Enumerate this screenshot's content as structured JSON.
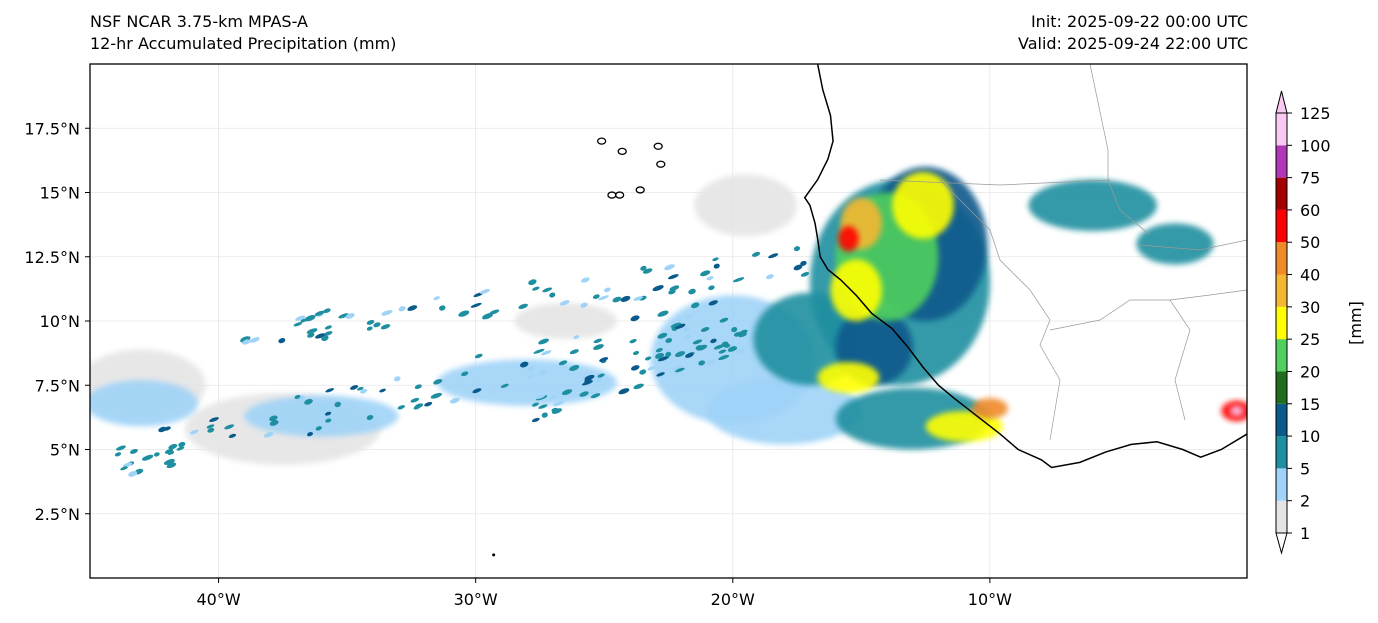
{
  "header": {
    "model": "NSF NCAR 3.75-km MPAS-A",
    "field": "12-hr Accumulated Precipitation (mm)",
    "init": "Init: 2025-09-22 00:00 UTC",
    "valid": "Valid: 2025-09-24 22:00 UTC"
  },
  "map": {
    "lon_range": [
      -45,
      0
    ],
    "lat_range": [
      0,
      20
    ],
    "lon_ticks": [
      -40,
      -30,
      -20,
      -10
    ],
    "lon_tick_labels": [
      "40°W",
      "30°W",
      "20°W",
      "10°W"
    ],
    "lat_ticks": [
      2.5,
      5,
      7.5,
      10,
      12.5,
      15,
      17.5
    ],
    "lat_tick_labels": [
      "2.5°N",
      "5°N",
      "7.5°N",
      "10°N",
      "12.5°N",
      "15°N",
      "17.5°N"
    ],
    "grid": true,
    "coastline": [
      [
        -16.7,
        20.0
      ],
      [
        -16.5,
        19.0
      ],
      [
        -16.2,
        18.0
      ],
      [
        -16.1,
        17.0
      ],
      [
        -16.3,
        16.3
      ],
      [
        -16.7,
        15.5
      ],
      [
        -17.2,
        14.8
      ],
      [
        -17.0,
        14.5
      ],
      [
        -16.8,
        13.8
      ],
      [
        -16.7,
        13.2
      ],
      [
        -16.6,
        12.5
      ],
      [
        -16.3,
        12.0
      ],
      [
        -15.8,
        11.6
      ],
      [
        -15.2,
        11.0
      ],
      [
        -14.6,
        10.3
      ],
      [
        -13.8,
        9.7
      ],
      [
        -13.2,
        9.0
      ],
      [
        -12.6,
        8.2
      ],
      [
        -12.0,
        7.5
      ],
      [
        -11.4,
        7.0
      ],
      [
        -10.5,
        6.3
      ],
      [
        -9.6,
        5.6
      ],
      [
        -8.9,
        5.0
      ],
      [
        -8.0,
        4.6
      ],
      [
        -7.6,
        4.3
      ],
      [
        -6.5,
        4.5
      ],
      [
        -5.5,
        4.9
      ],
      [
        -4.5,
        5.2
      ],
      [
        -3.5,
        5.3
      ],
      [
        -2.5,
        5.0
      ],
      [
        -1.8,
        4.7
      ],
      [
        -1.0,
        5.0
      ],
      [
        0.0,
        5.6
      ]
    ],
    "islands": [
      {
        "name": "Santo Antao",
        "lon": -25.1,
        "lat": 17.0
      },
      {
        "name": "Sao Nicolau",
        "lon": -24.3,
        "lat": 16.6
      },
      {
        "name": "Sal",
        "lon": -22.9,
        "lat": 16.8
      },
      {
        "name": "Boa Vista",
        "lon": -22.8,
        "lat": 16.1
      },
      {
        "name": "Fogo",
        "lon": -24.4,
        "lat": 14.9
      },
      {
        "name": "Santiago",
        "lon": -23.6,
        "lat": 15.1
      },
      {
        "name": "Brava",
        "lon": -24.7,
        "lat": 14.9
      }
    ]
  },
  "colorbar": {
    "unit_label": "[mm]",
    "extend": "both",
    "levels": [
      "1",
      "2",
      "5",
      "10",
      "15",
      "20",
      "25",
      "30",
      "40",
      "50",
      "60",
      "75",
      "100",
      "125"
    ],
    "colors": [
      "#e4e4e4",
      "#9fd3f7",
      "#1e8fa0",
      "#0a5a8c",
      "#1f6e1f",
      "#4fcf5c",
      "#ffff00",
      "#f5b731",
      "#ef8a28",
      "#ff0000",
      "#a30000",
      "#b037b7",
      "#f8c9f3"
    ],
    "under_color": "#ffffff",
    "over_color": "#f8c9f3"
  },
  "precip_regions": [
    {
      "lon": -43.0,
      "lat": 7.5,
      "rx": 2.5,
      "ry": 1.4,
      "level": 0
    },
    {
      "lon": -37.5,
      "lat": 5.8,
      "rx": 3.8,
      "ry": 1.4,
      "level": 0
    },
    {
      "lon": -26.5,
      "lat": 10.0,
      "rx": 2.0,
      "ry": 0.7,
      "level": 0
    },
    {
      "lon": -19.5,
      "lat": 14.5,
      "rx": 2.0,
      "ry": 1.2,
      "level": 0
    },
    {
      "lon": -43.0,
      "lat": 6.8,
      "rx": 2.2,
      "ry": 0.9,
      "level": 1
    },
    {
      "lon": -36.0,
      "lat": 6.3,
      "rx": 3.0,
      "ry": 0.8,
      "level": 1
    },
    {
      "lon": -28.0,
      "lat": 7.6,
      "rx": 3.5,
      "ry": 0.9,
      "level": 1
    },
    {
      "lon": -20.0,
      "lat": 8.5,
      "rx": 3.2,
      "ry": 2.5,
      "level": 1
    },
    {
      "lon": -18.0,
      "lat": 6.5,
      "rx": 3.0,
      "ry": 1.3,
      "level": 1
    },
    {
      "lon": -17.0,
      "lat": 9.3,
      "rx": 2.2,
      "ry": 1.8,
      "level": 2
    },
    {
      "lon": -13.5,
      "lat": 11.5,
      "rx": 3.5,
      "ry": 4.0,
      "level": 2
    },
    {
      "lon": -13.0,
      "lat": 6.2,
      "rx": 3.0,
      "ry": 1.2,
      "level": 2
    },
    {
      "lon": -6.0,
      "lat": 14.5,
      "rx": 2.5,
      "ry": 1.0,
      "level": 2
    },
    {
      "lon": -2.8,
      "lat": 13.0,
      "rx": 1.5,
      "ry": 0.8,
      "level": 2
    },
    {
      "lon": -12.5,
      "lat": 13.0,
      "rx": 2.4,
      "ry": 3.0,
      "level": 3
    },
    {
      "lon": -14.5,
      "lat": 9.0,
      "rx": 1.5,
      "ry": 1.5,
      "level": 3
    },
    {
      "lon": -14.0,
      "lat": 12.5,
      "rx": 2.0,
      "ry": 2.5,
      "level": 5
    },
    {
      "lon": -12.6,
      "lat": 14.5,
      "rx": 1.2,
      "ry": 1.3,
      "level": 6
    },
    {
      "lon": -15.2,
      "lat": 11.2,
      "rx": 1.0,
      "ry": 1.2,
      "level": 6
    },
    {
      "lon": -15.0,
      "lat": 13.8,
      "rx": 0.8,
      "ry": 1.0,
      "level": 7
    },
    {
      "lon": -15.5,
      "lat": 7.8,
      "rx": 1.2,
      "ry": 0.6,
      "level": 6
    },
    {
      "lon": -11.0,
      "lat": 5.9,
      "rx": 1.5,
      "ry": 0.6,
      "level": 6
    },
    {
      "lon": -10.0,
      "lat": 6.6,
      "rx": 0.7,
      "ry": 0.4,
      "level": 8
    },
    {
      "lon": -15.5,
      "lat": 13.2,
      "rx": 0.4,
      "ry": 0.5,
      "level": 9
    },
    {
      "lon": -0.4,
      "lat": 6.5,
      "rx": 0.6,
      "ry": 0.4,
      "level": 9
    },
    {
      "lon": -0.4,
      "lat": 6.5,
      "rx": 0.25,
      "ry": 0.2,
      "level": 12
    }
  ]
}
